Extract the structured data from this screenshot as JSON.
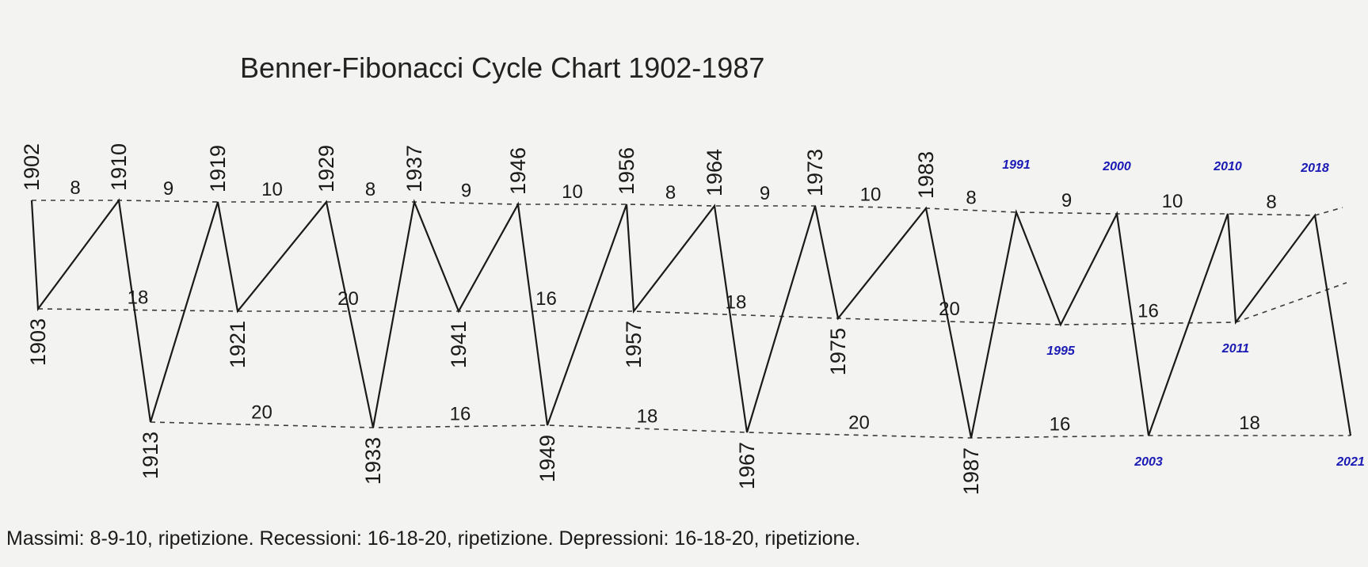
{
  "chart_data": {
    "type": "line",
    "title": "Benner-Fibonacci Cycle Chart 1902-1987",
    "colors": {
      "line": "#1a1a1a",
      "dashed": "#3a3a3a",
      "text": "#1a1a1a",
      "projection": "#1a1ab4"
    },
    "series": [
      {
        "name": "",
        "points": [
          {
            "year": "1902",
            "level": "high",
            "projection": false
          },
          {
            "year": "1903",
            "level": "recession",
            "projection": false
          },
          {
            "year": "1910",
            "level": "high",
            "projection": false
          },
          {
            "year": "1913",
            "level": "depression",
            "projection": false
          },
          {
            "year": "1919",
            "level": "high",
            "projection": false
          },
          {
            "year": "1921",
            "level": "recession",
            "projection": false
          },
          {
            "year": "1929",
            "level": "high",
            "projection": false
          },
          {
            "year": "1933",
            "level": "depression",
            "projection": false
          },
          {
            "year": "1937",
            "level": "high",
            "projection": false
          },
          {
            "year": "1941",
            "level": "recession",
            "projection": false
          },
          {
            "year": "1946",
            "level": "high",
            "projection": false
          },
          {
            "year": "1949",
            "level": "depression",
            "projection": false
          },
          {
            "year": "1956",
            "level": "high",
            "projection": false
          },
          {
            "year": "1957",
            "level": "recession",
            "projection": false
          },
          {
            "year": "1964",
            "level": "high",
            "projection": false
          },
          {
            "year": "1967",
            "level": "depression",
            "projection": false
          },
          {
            "year": "1973",
            "level": "high",
            "projection": false
          },
          {
            "year": "1975",
            "level": "recession",
            "projection": false
          },
          {
            "year": "1983",
            "level": "high",
            "projection": false
          },
          {
            "year": "1987",
            "level": "depression",
            "projection": false
          },
          {
            "year": "1991",
            "level": "high",
            "projection": true
          },
          {
            "year": "1995",
            "level": "recession",
            "projection": true
          },
          {
            "year": "2000",
            "level": "high",
            "projection": true
          },
          {
            "year": "2003",
            "level": "depression",
            "projection": true
          },
          {
            "year": "2010",
            "level": "high",
            "projection": true
          },
          {
            "year": "2011",
            "level": "recession",
            "projection": true
          },
          {
            "year": "2018",
            "level": "high",
            "projection": true
          },
          {
            "year": "2021",
            "level": "depression",
            "projection": true
          }
        ]
      }
    ],
    "cycles": {
      "highs": [
        "8",
        "9",
        "10",
        "8",
        "9",
        "10",
        "8",
        "9",
        "10",
        "8",
        "9",
        "10",
        "8"
      ],
      "recessions": [
        "18",
        "20",
        "16",
        "18",
        "20",
        "16"
      ],
      "depressions": [
        "20",
        "16",
        "18",
        "20",
        "16",
        "18"
      ]
    },
    "caption": "Massimi: 8-9-10, ripetizione. Recessioni: 16-18-20, ripetizione. Depressioni: 16-18-20, ripetizione."
  }
}
